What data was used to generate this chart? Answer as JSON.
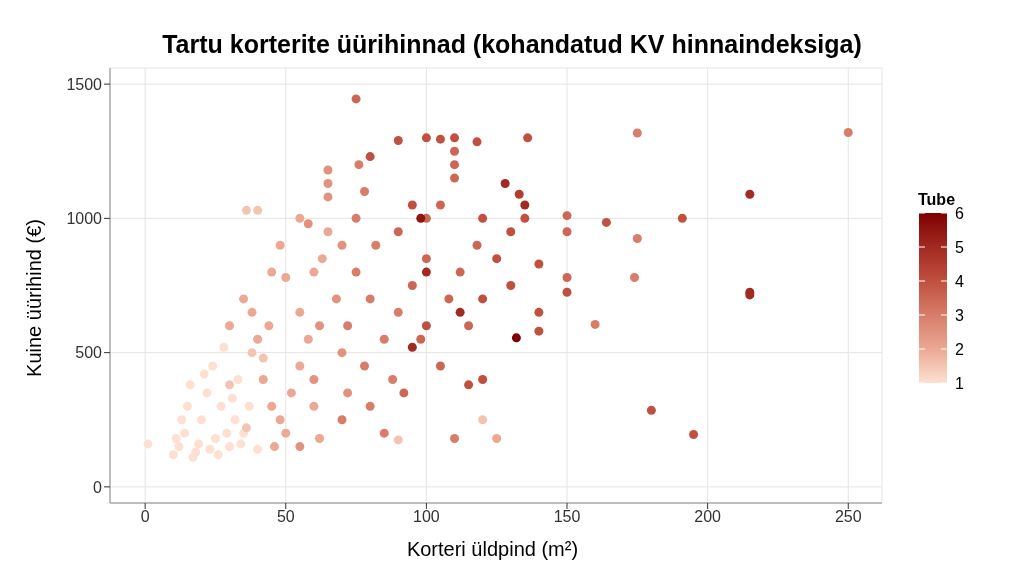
{
  "chart_data": {
    "type": "scatter",
    "title": "Tartu korterite üürihinnad (kohandatud KV hinnaindeksiga)",
    "xlabel": "Korteri üldpind (m²)",
    "ylabel": "Kuine üürihind (€)",
    "clabel": "Tube",
    "x": [
      1,
      10,
      12,
      14,
      15,
      16,
      18,
      20,
      22,
      24,
      25,
      27,
      28,
      30,
      32,
      33,
      35,
      11,
      13,
      19,
      21,
      17,
      23,
      26,
      29,
      31,
      34,
      37,
      40,
      38,
      42,
      36,
      30,
      30,
      35,
      38,
      40,
      42,
      45,
      48,
      50,
      52,
      55,
      45,
      48,
      50,
      55,
      58,
      60,
      62,
      46,
      44,
      60,
      63,
      65,
      55,
      36,
      40,
      60,
      62,
      65,
      65,
      65,
      68,
      70,
      72,
      70,
      55,
      58,
      70,
      72,
      75,
      78,
      80,
      80,
      82,
      85,
      75,
      88,
      90,
      85,
      76,
      78,
      90,
      92,
      95,
      98,
      100,
      100,
      105,
      108,
      110,
      110,
      110,
      105,
      112,
      115,
      118,
      95,
      100,
      105,
      110,
      118,
      120,
      125,
      120,
      130,
      130,
      135,
      120,
      100,
      90,
      80,
      115,
      75,
      128,
      133,
      135,
      98,
      112,
      100,
      95,
      132,
      136,
      150,
      150,
      150,
      150,
      140,
      140,
      140,
      125,
      120,
      110,
      90,
      175,
      175,
      174,
      160,
      164,
      191,
      215,
      215,
      215,
      180,
      195,
      250
    ],
    "values": [
      160,
      120,
      150,
      200,
      300,
      380,
      130,
      250,
      350,
      450,
      180,
      300,
      520,
      150,
      250,
      400,
      200,
      180,
      250,
      160,
      420,
      110,
      140,
      120,
      200,
      330,
      160,
      300,
      140,
      500,
      480,
      220,
      380,
      600,
      700,
      650,
      550,
      400,
      300,
      250,
      200,
      350,
      450,
      800,
      900,
      780,
      650,
      550,
      300,
      180,
      150,
      600,
      800,
      850,
      950,
      1000,
      1030,
      1030,
      400,
      600,
      1180,
      1130,
      1080,
      700,
      500,
      350,
      900,
      150,
      980,
      250,
      600,
      800,
      450,
      300,
      700,
      900,
      550,
      1000,
      400,
      650,
      200,
      1200,
      1100,
      950,
      350,
      750,
      550,
      1000,
      850,
      450,
      700,
      1250,
      1200,
      1150,
      1050,
      800,
      600,
      900,
      1050,
      1300,
      1295,
      1300,
      1285,
      1000,
      850,
      700,
      950,
      750,
      1000,
      400,
      600,
      1290,
      1230,
      380,
      1445,
      1130,
      1090,
      1050,
      1000,
      650,
      800,
      520,
      555,
      1300,
      1010,
      950,
      780,
      725,
      830,
      650,
      580,
      180,
      250,
      180,
      175,
      1318,
      925,
      780,
      605,
      985,
      1000,
      1090,
      725,
      715,
      285,
      195,
      1320
    ],
    "cvalues": [
      1,
      1,
      1,
      1,
      1,
      1,
      1,
      1,
      1,
      1,
      1,
      1,
      1,
      1,
      1,
      1,
      1,
      1,
      1,
      1,
      1,
      1,
      1,
      1,
      1,
      1,
      1,
      1,
      1,
      1.5,
      1.5,
      1.5,
      1.5,
      2,
      2,
      2,
      2,
      2,
      2,
      2,
      2,
      2,
      2,
      2,
      2,
      2,
      2,
      2,
      2,
      2,
      2,
      2,
      2,
      2,
      2,
      2,
      1.5,
      1.5,
      2.5,
      2.5,
      2.5,
      2.5,
      2.5,
      2.5,
      2.5,
      2.5,
      2.5,
      2.5,
      2.5,
      3,
      3,
      3,
      3,
      3,
      3,
      3,
      3,
      3,
      3,
      3,
      3,
      3,
      3,
      3.5,
      3.5,
      3.5,
      3.5,
      3.5,
      3.5,
      3.5,
      3.5,
      3.5,
      3.5,
      3.5,
      3.5,
      3.5,
      3.5,
      3.5,
      4,
      4,
      4,
      4,
      4,
      4,
      4,
      4,
      4,
      4,
      4,
      4,
      4,
      4,
      4,
      4,
      3.5,
      5,
      4.5,
      5,
      5.5,
      5,
      5,
      5,
      6,
      4,
      3.5,
      3.5,
      3.5,
      4,
      4,
      4,
      4,
      2,
      1.5,
      3,
      1.5,
      3,
      3,
      3,
      3,
      4,
      4,
      5,
      5,
      5,
      4,
      4,
      3
    ],
    "xlim": [
      -12.5,
      262
    ],
    "xticks": [
      0,
      50,
      100,
      150,
      200,
      250
    ],
    "ylim": [
      -60,
      1560
    ],
    "yticks": [
      0,
      500,
      1000,
      1500
    ],
    "clim": [
      1,
      6
    ],
    "cticks": [
      1,
      2,
      3,
      4,
      5,
      6
    ],
    "grid": true,
    "marker": "circle"
  }
}
